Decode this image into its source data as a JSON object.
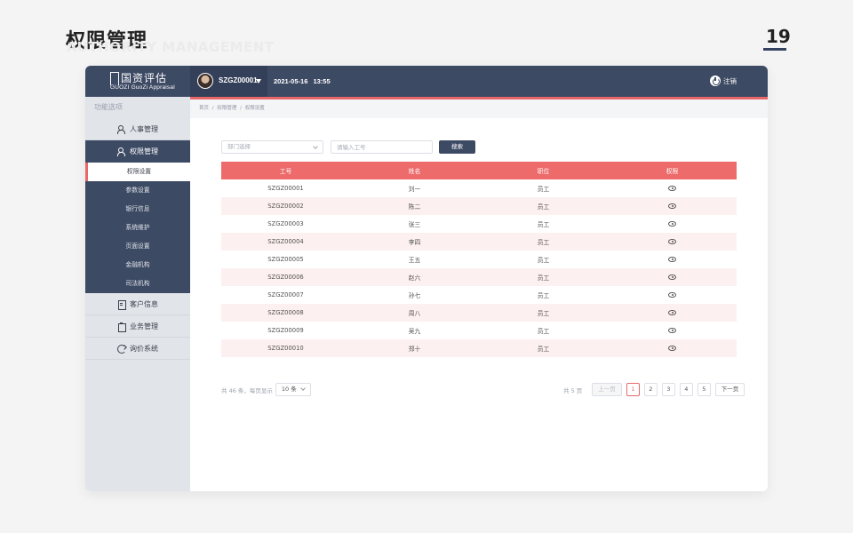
{
  "slide": {
    "title": "权限管理",
    "subtitle": "AUTHORITY MANAGEMENT",
    "page_number": "19"
  },
  "header": {
    "logo_cn": "国资评估",
    "logo_en": "GUOZI GuoZi Appraisal",
    "username": "SZGZ00001",
    "date": "2021-05-16",
    "time": "13:55",
    "logout_label": "注销"
  },
  "sidebar": {
    "header": "功能选项",
    "items": [
      {
        "label": "人事管理",
        "icon": "people-icon"
      },
      {
        "label": "权限管理",
        "icon": "people-icon",
        "active": true
      },
      {
        "label": "客户信息",
        "icon": "doc-icon"
      },
      {
        "label": "业务管理",
        "icon": "clipboard-icon"
      },
      {
        "label": "询价系统",
        "icon": "loop-icon"
      }
    ],
    "submenu": [
      {
        "label": "权限设置",
        "active": true
      },
      {
        "label": "参数设置"
      },
      {
        "label": "银行信息"
      },
      {
        "label": "系统维护"
      },
      {
        "label": "页面设置"
      },
      {
        "label": "金融机构"
      },
      {
        "label": "司法机构"
      }
    ]
  },
  "breadcrumb": [
    "首页",
    "/",
    "权限管理",
    "/",
    "权限设置"
  ],
  "filters": {
    "dept_placeholder": "部门选择",
    "id_placeholder": "请输入工号",
    "search_label": "搜索"
  },
  "table": {
    "columns": [
      "工号",
      "姓名",
      "职位",
      "权限"
    ],
    "rows": [
      [
        "SZGZ00001",
        "刘一",
        "员工"
      ],
      [
        "SZGZ00002",
        "陈二",
        "员工"
      ],
      [
        "SZGZ00003",
        "张三",
        "员工"
      ],
      [
        "SZGZ00004",
        "李四",
        "员工"
      ],
      [
        "SZGZ00005",
        "王五",
        "员工"
      ],
      [
        "SZGZ00006",
        "赵六",
        "员工"
      ],
      [
        "SZGZ00007",
        "孙七",
        "员工"
      ],
      [
        "SZGZ00008",
        "周八",
        "员工"
      ],
      [
        "SZGZ00009",
        "吴九",
        "员工"
      ],
      [
        "SZGZ00010",
        "郑十",
        "员工"
      ]
    ],
    "action_icon": "eye-icon"
  },
  "pagination": {
    "total_text": "共 46 条，每页显示",
    "page_size": "10 条",
    "total_pages": "共 5 页",
    "prev_label": "上一页",
    "pages": [
      "1",
      "2",
      "3",
      "4",
      "5"
    ],
    "current": "1",
    "next_label": "下一页"
  },
  "colors": {
    "nav": "#3d4a64",
    "accent": "#e8686a",
    "table_header": "#ed6b6b",
    "row_alt": "#fdf0f0"
  }
}
